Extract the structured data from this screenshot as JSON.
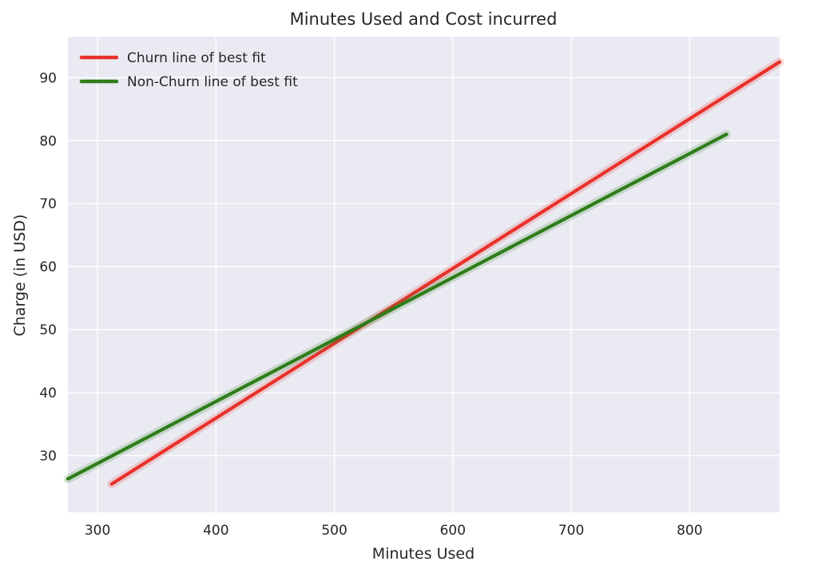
{
  "chart_data": {
    "type": "line",
    "title": "Minutes Used and Cost incurred",
    "xlabel": "Minutes Used",
    "ylabel": "Charge (in USD)",
    "xlim": [
      275,
      876
    ],
    "ylim": [
      21,
      96.5
    ],
    "xticks": [
      300,
      400,
      500,
      600,
      700,
      800
    ],
    "yticks": [
      30,
      40,
      50,
      60,
      70,
      80,
      90
    ],
    "grid": true,
    "legend_position": "top-left",
    "series": [
      {
        "name": "Churn line of best fit",
        "color": "#e8312a",
        "x": [
          312,
          876
        ],
        "y": [
          25.5,
          92.5
        ]
      },
      {
        "name": "Non-Churn line of best fit",
        "color": "#2e7d1a",
        "x": [
          275,
          831
        ],
        "y": [
          26.3,
          81.0
        ]
      }
    ]
  }
}
